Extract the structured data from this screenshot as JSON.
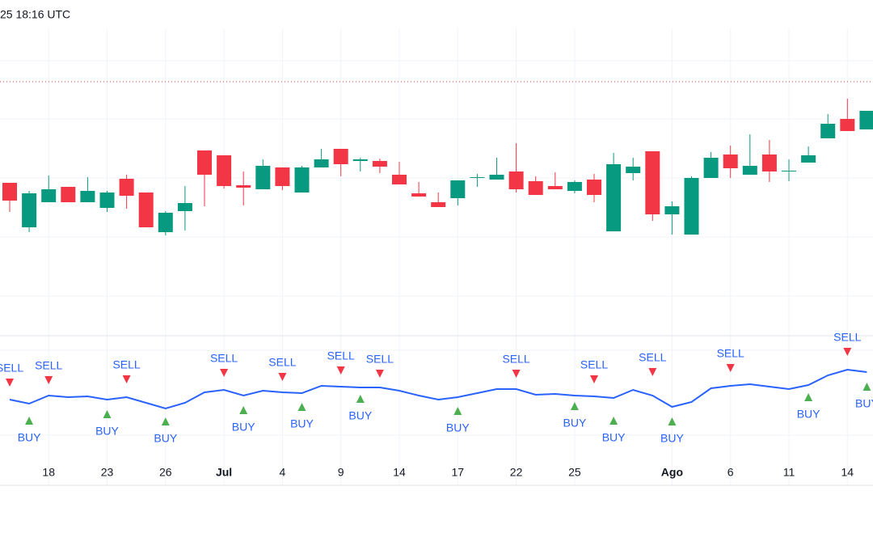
{
  "chart_data": {
    "type": "candlestick",
    "timestamp": "25 18:16 UTC",
    "categories": [
      null,
      null,
      "18",
      null,
      null,
      "23",
      null,
      null,
      "26",
      null,
      null,
      "Jul",
      null,
      null,
      "4",
      null,
      null,
      "9",
      null,
      null,
      "14",
      null,
      null,
      "17",
      null,
      null,
      "22",
      null,
      null,
      "25",
      null,
      null,
      null,
      null,
      "Ago",
      null,
      null,
      "6",
      null,
      null,
      "11",
      null,
      null,
      "14",
      null
    ],
    "open": [
      189,
      134,
      165,
      184,
      165,
      158,
      194,
      177,
      128,
      154,
      229,
      223,
      186,
      181,
      208,
      177,
      208,
      231,
      216,
      216,
      199,
      176,
      165,
      170,
      195,
      193,
      203,
      191,
      185,
      179,
      193,
      129,
      201,
      228,
      150,
      125,
      195,
      224,
      199,
      224,
      203,
      214,
      244,
      268,
      255
    ],
    "high": [
      189,
      179,
      198,
      184,
      196,
      179,
      199,
      177,
      154,
      185,
      229,
      223,
      203,
      218,
      208,
      210,
      231,
      231,
      220,
      219,
      215,
      190,
      177,
      192,
      200,
      220,
      238,
      197,
      202,
      192,
      200,
      226,
      220,
      228,
      166,
      197,
      227,
      235,
      249,
      242,
      218,
      234,
      274,
      293,
      278
    ],
    "low": [
      153,
      128,
      165,
      165,
      165,
      153,
      157,
      134,
      124,
      130,
      160,
      182,
      161,
      181,
      180,
      177,
      208,
      197,
      203,
      201,
      187,
      172,
      159,
      161,
      184,
      193,
      177,
      174,
      181,
      176,
      165,
      129,
      192,
      142,
      125,
      125,
      195,
      195,
      199,
      190,
      191,
      214,
      244,
      253,
      255
    ],
    "close": [
      167,
      176,
      181,
      165,
      179,
      177,
      173,
      134,
      152,
      164,
      199,
      185,
      183,
      210,
      185,
      208,
      218,
      212,
      218,
      209,
      187,
      172,
      159,
      192,
      196,
      199,
      181,
      174,
      181,
      190,
      174,
      212,
      209,
      150,
      160,
      195,
      220,
      207,
      210,
      203,
      204,
      223,
      262,
      253,
      278
    ],
    "up_color": "#089981",
    "down_color": "#f23645",
    "ylim": [
      0,
      380
    ],
    "price_line": {
      "value": 314,
      "color": "#f23645"
    },
    "indicator": {
      "type": "line",
      "color": "#2962ff",
      "ylim": [
        0,
        185
      ],
      "values": [
        106,
        101,
        111,
        109,
        110,
        106,
        109,
        102,
        95,
        102,
        115,
        118,
        111,
        117,
        115,
        114,
        123,
        122,
        121,
        121,
        117,
        111,
        106,
        109,
        114,
        119,
        119,
        112,
        113,
        111,
        110,
        108,
        118,
        111,
        97,
        103,
        120,
        123,
        125,
        122,
        119,
        124,
        136,
        143,
        140
      ],
      "signals": [
        {
          "name": "SELL",
          "color": "#f23645",
          "values": [
            127,
            null,
            130,
            null,
            null,
            null,
            131,
            null,
            null,
            null,
            null,
            139,
            null,
            null,
            134,
            null,
            null,
            142,
            null,
            138,
            null,
            null,
            null,
            null,
            null,
            null,
            138,
            null,
            null,
            null,
            131,
            null,
            null,
            140,
            null,
            null,
            null,
            145,
            null,
            null,
            null,
            null,
            null,
            165,
            null
          ]
        },
        {
          "name": "BUY",
          "color": "#4caf50",
          "values": [
            null,
            80,
            null,
            null,
            null,
            88,
            null,
            null,
            79,
            null,
            null,
            null,
            93,
            null,
            null,
            97,
            null,
            null,
            107,
            null,
            null,
            null,
            null,
            92,
            null,
            null,
            null,
            null,
            null,
            98,
            null,
            80,
            null,
            null,
            79,
            null,
            null,
            null,
            null,
            null,
            null,
            109,
            null,
            null,
            122
          ]
        }
      ]
    }
  }
}
